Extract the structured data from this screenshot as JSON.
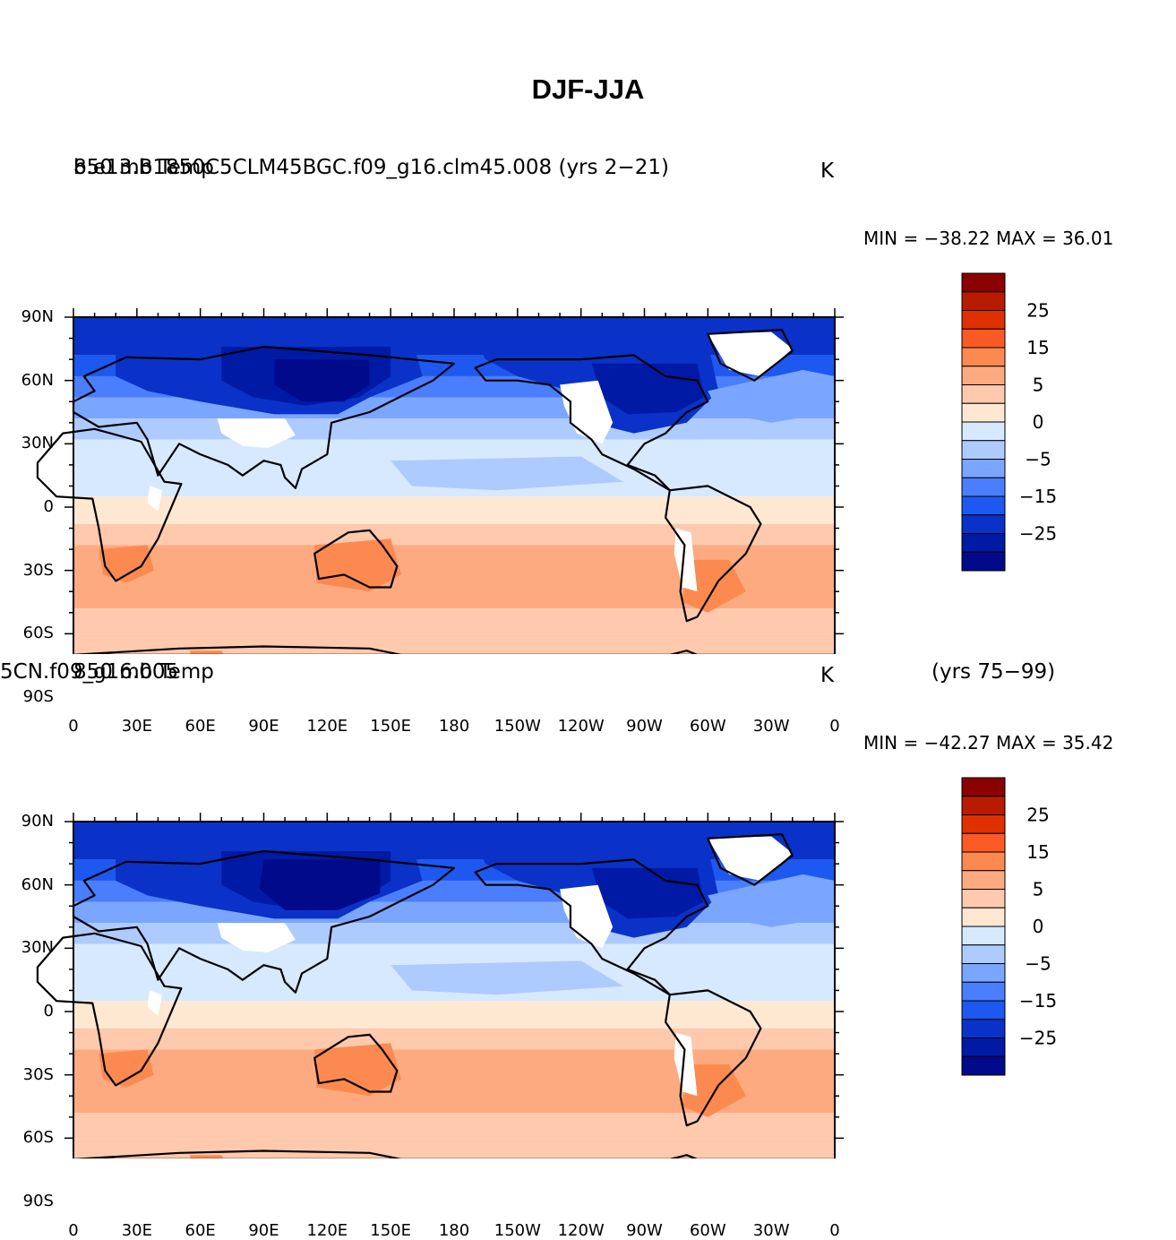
{
  "page": {
    "title": "DJF-JJA"
  },
  "axes": {
    "lat_ticks": [
      "90N",
      "60N",
      "30N",
      "0",
      "30S",
      "60S",
      "90S"
    ],
    "lon_ticks": [
      "0",
      "30E",
      "60E",
      "90E",
      "120E",
      "150E",
      "180",
      "150W",
      "120W",
      "90W",
      "60W",
      "30W",
      "0"
    ]
  },
  "colorbar": {
    "labels": [
      "25",
      "15",
      "5",
      "0",
      "−5",
      "−15",
      "−25"
    ],
    "colors": [
      "#8b0000",
      "#b71c00",
      "#e03000",
      "#fb5a24",
      "#fc8a50",
      "#fdaa80",
      "#fec9ad",
      "#fee8d2",
      "#d6e9ff",
      "#aecbff",
      "#7aa6ff",
      "#4a7eff",
      "#1d58f0",
      "#0a32c8",
      "#001aa5",
      "#000a8a"
    ]
  },
  "panels": [
    {
      "id": "top",
      "left_label": "850 mb Temp",
      "case_label": "b.e13.B1850C5CLM45BGC.f09_g16.clm45.008 (yrs 2−21)",
      "units": "K",
      "right_label": "",
      "min_label": "MIN = −38.22",
      "max_label": "MAX =  36.01"
    },
    {
      "id": "bottom",
      "left_label": "850 mb Temp",
      "case_label": "5CN.f09_g16.005",
      "units": "K",
      "right_label": "(yrs 75−99)",
      "min_label": "MIN = −42.27",
      "max_label": "MAX =  35.42"
    }
  ],
  "map_data": {
    "variable": "850 mb Temp",
    "season_difference": "DJF-JJA",
    "units": "K",
    "lon_range": [
      0,
      360
    ],
    "lat_range": [
      -90,
      90
    ],
    "contour_levels": [
      -30,
      -25,
      -20,
      -15,
      -10,
      -5,
      0,
      5,
      10,
      15,
      20,
      25,
      30
    ],
    "missing_regions": [
      "Tibetan Plateau",
      "Rocky Mountains",
      "Greenland",
      "Antarctica interior",
      "Andes",
      "East Africa highlands"
    ]
  }
}
